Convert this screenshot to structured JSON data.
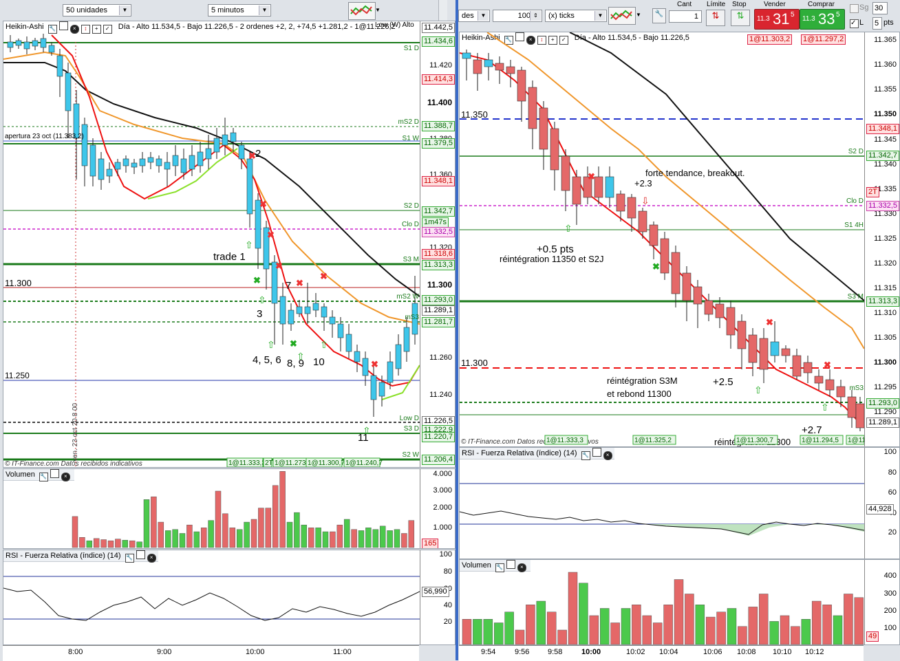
{
  "toolbar_left": {
    "quantity": "50 unidades",
    "timeframe": "5 minutos"
  },
  "toolbar_right": {
    "units": "des",
    "ticks_value": "100",
    "ticks_label": "(x) ticks",
    "cant_label": "Cant",
    "cant_value": "1",
    "limite_label": "Límite",
    "stop_label": "Stop",
    "vender_label": "Vender",
    "vender_small": "11.3",
    "vender_big": "31",
    "vender_sup": "5",
    "comprar_label": "Comprar",
    "comprar_small": "11.3",
    "comprar_big": "33",
    "comprar_sup": "5",
    "sg_label": "Sg",
    "sg_value": "30",
    "l_label": "L",
    "l_value": "5",
    "pts_label": "pts"
  },
  "left_chart": {
    "title": "Heikin-Ashi",
    "info": "Día - Alto 11.534,5 - Bajo 11.226,5 - 2 ordenes +2, 2, +74,5 +1.281,2 - 1@11.226,2",
    "info_right": "Low (W)  Alto",
    "apertura": "apertura 23 oct (11.383,2)",
    "price_ticks": [
      "11.420",
      "11.400",
      "11.380",
      "11.360",
      "11.340",
      "11.320",
      "11.300",
      "11.280",
      "11.260",
      "11.240"
    ],
    "badges": [
      {
        "text": "11.442,5",
        "cls": "b-grey"
      },
      {
        "text": "11.434,6",
        "cls": "b-green"
      },
      {
        "text": "11.414,3",
        "cls": "b-red"
      },
      {
        "text": "11.388,7",
        "cls": "b-green"
      },
      {
        "text": "11.379,5",
        "cls": "b-green"
      },
      {
        "text": "11.348,1",
        "cls": "b-red"
      },
      {
        "text": "11.342,7",
        "cls": "b-green"
      },
      {
        "text": "1m47s",
        "cls": "b-green"
      },
      {
        "text": "11.332,5",
        "cls": "b-pink"
      },
      {
        "text": "11.318,6",
        "cls": "b-red"
      },
      {
        "text": "11.313,3",
        "cls": "b-green"
      },
      {
        "text": "11.293,0",
        "cls": "b-green"
      },
      {
        "text": "11.289,1",
        "cls": "b-grey"
      },
      {
        "text": "11.281,7",
        "cls": "b-green"
      },
      {
        "text": "11.226,5",
        "cls": "b-grey"
      },
      {
        "text": "11.222,9",
        "cls": "b-green"
      },
      {
        "text": "11.220,7",
        "cls": "b-green"
      },
      {
        "text": "11.206,4",
        "cls": "b-green"
      }
    ],
    "level_labels": [
      "S1 D",
      "mS2 D",
      "S1 W",
      "S2 D",
      "Clo D",
      "S3 M",
      "mS2 W",
      "mS3",
      "Low D",
      "S3 D",
      "S2 W"
    ],
    "price_labels": [
      "11.300",
      "11.250"
    ],
    "annotations": [
      "2",
      "trade 1",
      "7",
      "3",
      "4, 5, 6",
      "8, 9",
      "10",
      "11"
    ],
    "vline_label": "ven. 23 oct 20 8 00",
    "footer": "© IT-Finance.com  Datos recibidos indicativos",
    "order_tags": [
      "1@11.333,3",
      "2T",
      "1@11.273,7",
      "1@11.300,7",
      "1@11.240,7"
    ],
    "time_ticks": [
      "8:00",
      "9:00",
      "10:00",
      "11:00"
    ]
  },
  "left_volume": {
    "title": "Volumen",
    "ticks": [
      "4.000",
      "3.000",
      "2.000",
      "1.000"
    ],
    "badge": "165"
  },
  "left_rsi": {
    "title": "RSI - Fuerza Relativa (índice) (14)",
    "ticks": [
      "100",
      "80",
      "60",
      "40",
      "20"
    ],
    "badge": "56,990"
  },
  "right_chart": {
    "title": "Heikin-Ashi",
    "info": "Día - Alto 11.534,5 - Bajo 11.226,5",
    "order_tags_top": [
      "1@11.303,2",
      "1@11.297,2"
    ],
    "price_ticks": [
      "11.365",
      "11.360",
      "11.355",
      "11.350",
      "11.345",
      "11.340",
      "11.335",
      "11.330",
      "11.325",
      "11.320",
      "11.315",
      "11.310",
      "11.305",
      "11.300",
      "11.295",
      "11.290"
    ],
    "badges": [
      {
        "text": "11.348,1",
        "cls": "b-red"
      },
      {
        "text": "11.342,7",
        "cls": "b-green"
      },
      {
        "text": "2T",
        "cls": "b-red"
      },
      {
        "text": "11.332,5",
        "cls": "b-pink"
      },
      {
        "text": "11.313,3",
        "cls": "b-green"
      },
      {
        "text": "11.293,0",
        "cls": "b-green"
      },
      {
        "text": "11.289,1",
        "cls": "b-grey"
      }
    ],
    "level_labels": [
      "S2 D",
      "Clo D",
      "S1 4H",
      "S3 M",
      "mS3"
    ],
    "price_labels": [
      "11.350",
      "11.300"
    ],
    "annotations": [
      "forte tendance, breakout.",
      "+2.3",
      "+0.5 pts",
      "réintégration 11350 et S2J",
      "réintégration S3M",
      "et rebond 11300",
      "+2.5",
      "+2.7",
      "réintégration 11300"
    ],
    "footer": "© IT-Finance.com  Datos recibidos indicativos",
    "order_tags": [
      "1@11.333,3",
      "1@11.325,2",
      "1@11.300,7",
      "1@11.294,5",
      "1@11.2"
    ]
  },
  "right_rsi": {
    "title": "RSI - Fuerza Relativa (índice) (14)",
    "ticks": [
      "100",
      "80",
      "60",
      "40",
      "20"
    ],
    "badge": "44,928"
  },
  "right_volume": {
    "title": "Volumen",
    "ticks": [
      "400",
      "300",
      "200",
      "100"
    ],
    "badge": "49",
    "time_ticks": [
      "9:54",
      "9:56",
      "9:58",
      "10:00",
      "10:02",
      "10:04",
      "10:06",
      "10:08",
      "10:10",
      "10:12"
    ]
  }
}
